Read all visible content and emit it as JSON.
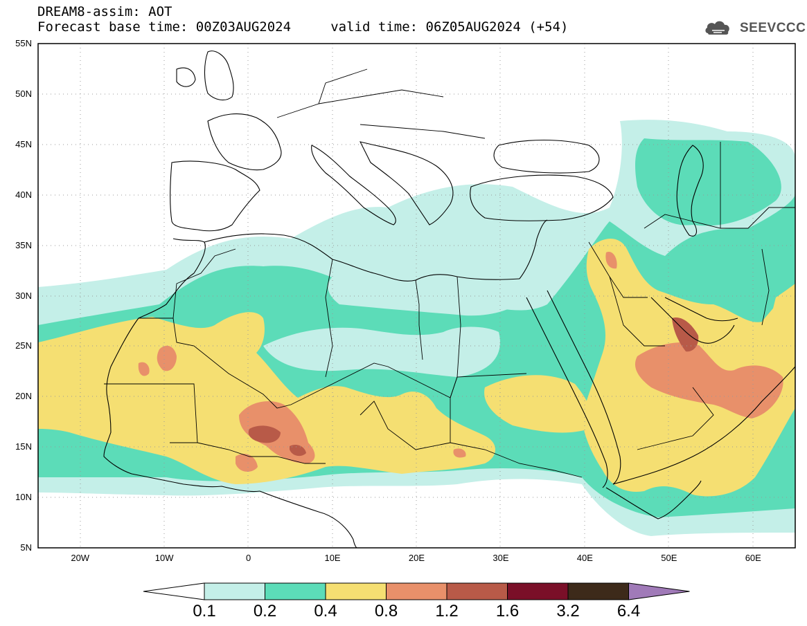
{
  "header": {
    "title_line1": "DREAM8-assim: AOT",
    "title_line2": "Forecast base time: 00Z03AUG2024     valid time: 06Z05AUG2024 (+54)"
  },
  "logo": {
    "text": "SEEVCCC",
    "icon": "cloud-icon"
  },
  "map": {
    "lat_ticks": [
      "55N",
      "50N",
      "45N",
      "40N",
      "35N",
      "30N",
      "25N",
      "20N",
      "15N",
      "10N",
      "5N"
    ],
    "lon_ticks": [
      "20W",
      "10W",
      "0",
      "10E",
      "20E",
      "30E",
      "40E",
      "50E",
      "60E"
    ],
    "lat_range": [
      5,
      55
    ],
    "lon_range": [
      -25,
      65
    ],
    "grid": "dotted"
  },
  "colorbar": {
    "labels": [
      "0.1",
      "0.2",
      "0.4",
      "0.8",
      "1.2",
      "1.6",
      "3.2",
      "6.4"
    ],
    "colors": [
      "#c4efe8",
      "#5cdcb8",
      "#f5df72",
      "#e8906a",
      "#b85a48",
      "#7a0f28",
      "#3d2a1a",
      "#a07ab8"
    ],
    "under_color": "#ffffff",
    "over_color": "#a07ab8"
  }
}
